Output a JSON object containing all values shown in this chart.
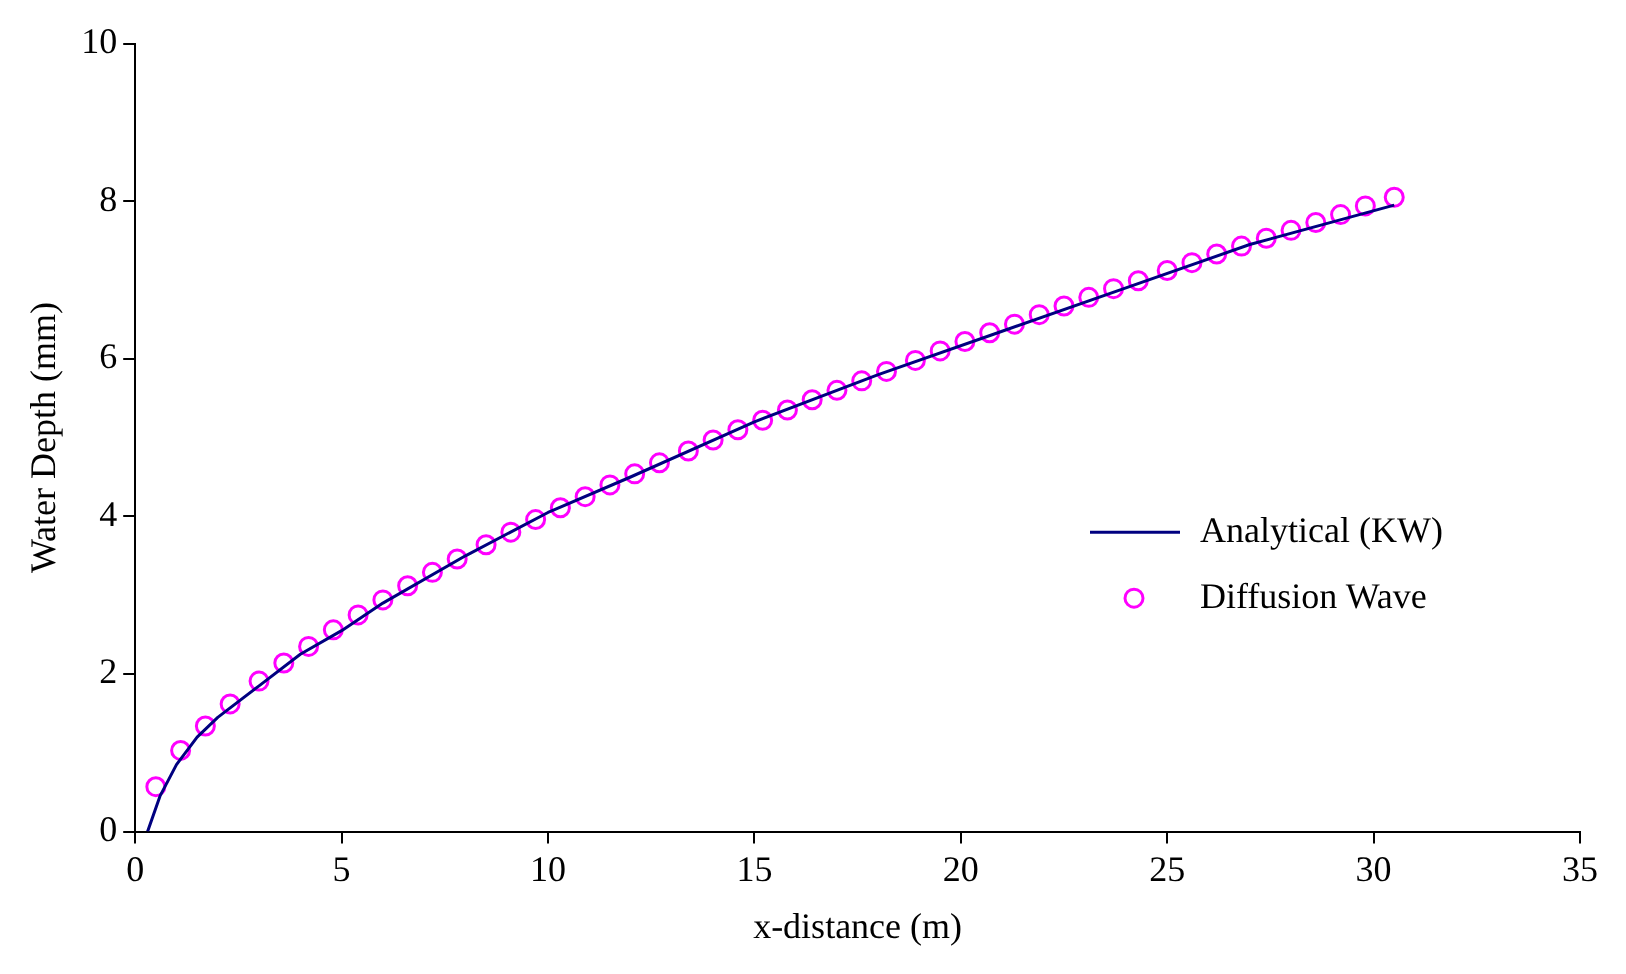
{
  "chart_data": {
    "type": "line",
    "xlabel": "x-distance (m)",
    "ylabel": "Water Depth (mm)",
    "xlim": [
      0,
      35
    ],
    "xticks": [
      0,
      5,
      10,
      15,
      20,
      25,
      30,
      35
    ],
    "ylim": [
      0,
      10
    ],
    "yticks": [
      0,
      2,
      4,
      6,
      8,
      10
    ],
    "grid": false,
    "legend": "right",
    "series": [
      {
        "name": "Analytical (KW)",
        "color": "#000080",
        "marker": "none",
        "line_style": "solid",
        "x": [
          0.3,
          0.6,
          1,
          1.5,
          2,
          3,
          4,
          5,
          6,
          8,
          10,
          12,
          15,
          18,
          21,
          24,
          27,
          30.5
        ],
        "values": [
          0,
          0.45,
          0.85,
          1.2,
          1.45,
          1.85,
          2.25,
          2.55,
          2.9,
          3.5,
          4.05,
          4.5,
          5.2,
          5.8,
          6.35,
          6.9,
          7.45,
          7.95
        ]
      },
      {
        "name": "Diffusion Wave",
        "type": "scatter",
        "color": "#ff00ff",
        "marker": "circle",
        "x": [
          0.5,
          1.1,
          1.7,
          2.3,
          3.0,
          3.6,
          4.2,
          4.8,
          5.4,
          6.0,
          6.6,
          7.2,
          7.8,
          8.5,
          9.1,
          9.7,
          10.3,
          10.9,
          11.5,
          12.1,
          12.7,
          13.4,
          14.0,
          14.6,
          15.2,
          15.8,
          16.4,
          17.0,
          17.6,
          18.2,
          18.9,
          19.5,
          20.1,
          20.7,
          21.3,
          21.9,
          22.5,
          23.1,
          23.7,
          24.3,
          25.0,
          25.6,
          26.2,
          26.8,
          27.4,
          28.0,
          28.6,
          29.2,
          29.8,
          30.5
        ],
        "values": [
          0.57,
          1.03,
          1.34,
          1.62,
          1.91,
          2.14,
          2.35,
          2.56,
          2.75,
          2.94,
          3.12,
          3.29,
          3.46,
          3.64,
          3.8,
          3.96,
          4.11,
          4.25,
          4.4,
          4.54,
          4.68,
          4.83,
          4.97,
          5.1,
          5.22,
          5.35,
          5.48,
          5.6,
          5.72,
          5.84,
          5.98,
          6.1,
          6.22,
          6.33,
          6.44,
          6.56,
          6.67,
          6.78,
          6.89,
          6.99,
          7.12,
          7.22,
          7.33,
          7.43,
          7.53,
          7.63,
          7.73,
          7.83,
          7.94,
          8.05
        ]
      }
    ]
  }
}
